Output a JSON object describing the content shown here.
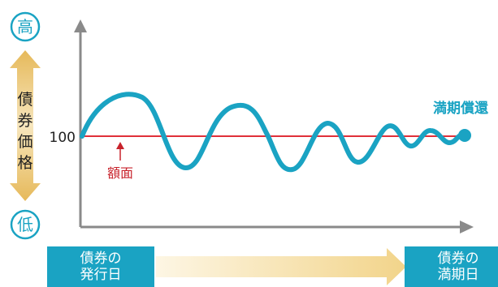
{
  "labels": {
    "high": "高",
    "low": "低",
    "price_axis": [
      "債",
      "券",
      "価",
      "格"
    ],
    "par_value": "100",
    "par_label": "額面",
    "maturity_redemption": "満期償還"
  },
  "badges": {
    "issue_date": [
      "債券の",
      "発行日"
    ],
    "maturity_date": [
      "債券の",
      "満期日"
    ]
  },
  "colors": {
    "wave": "#1aa3c3",
    "par_line": "#e0303a",
    "label_red": "#c8232c",
    "axis": "#8a8a8a",
    "gold": "#e6b95a",
    "badge_bg": "#1aa3c3"
  }
}
